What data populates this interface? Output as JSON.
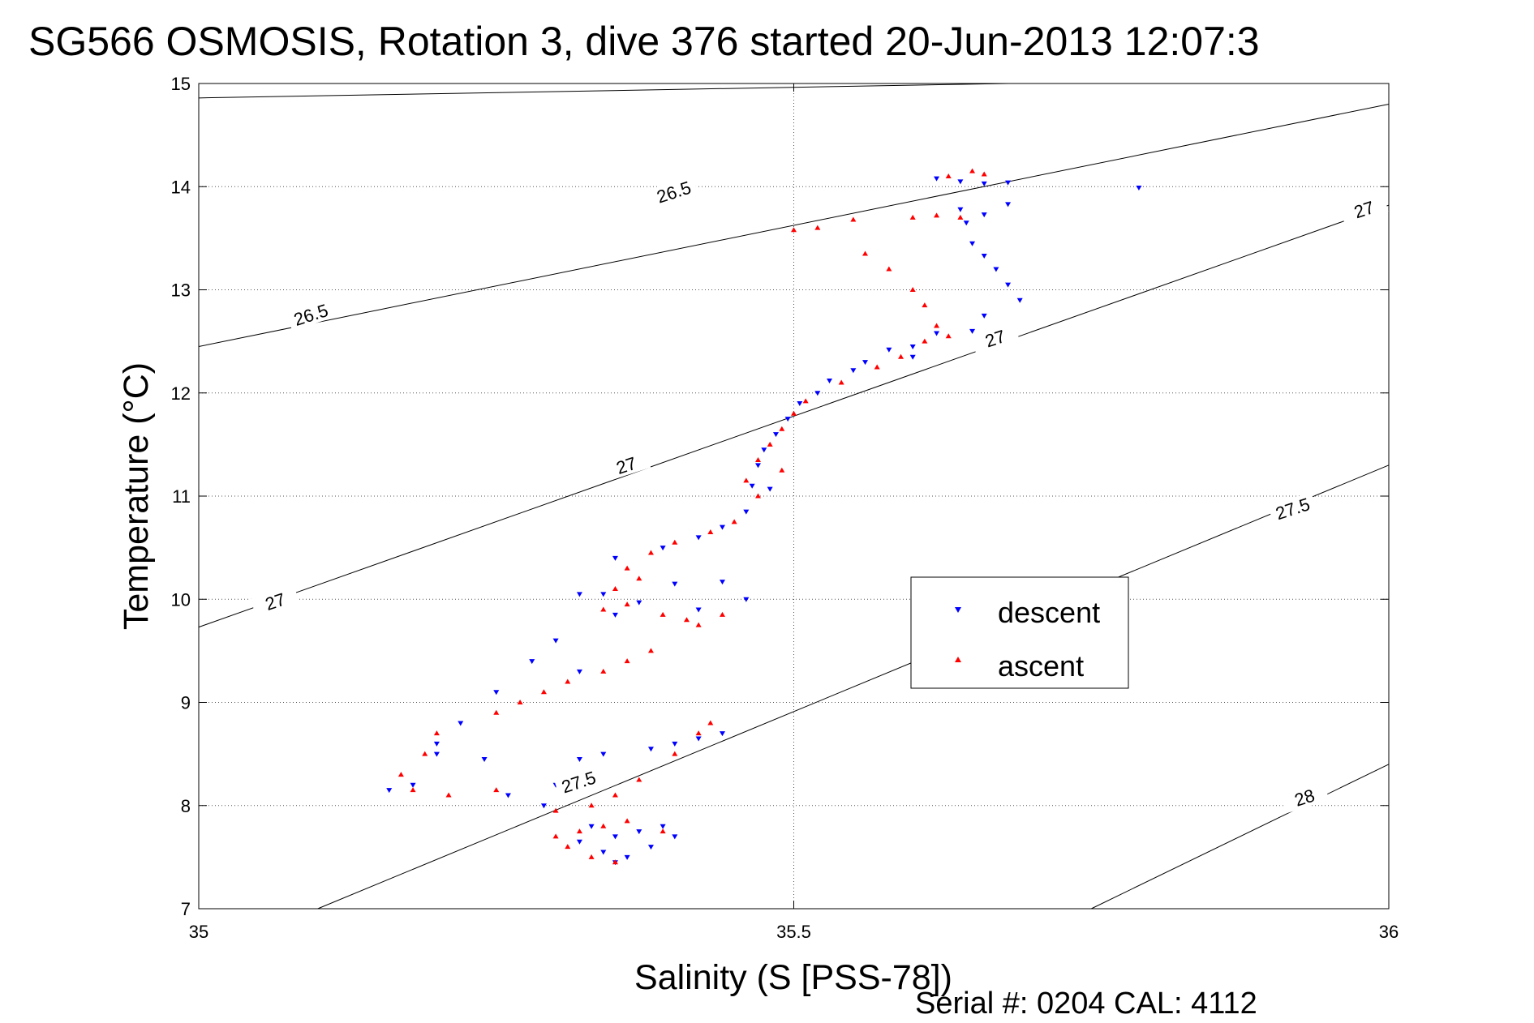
{
  "chart_data": {
    "type": "scatter",
    "title": "SG566 OSMOSIS, Rotation 3, dive 376 started 20-Jun-2013 12:07:3",
    "xlabel": "Salinity (S [PSS-78])",
    "ylabel": "Temperature (°C)",
    "xlim": [
      35,
      36
    ],
    "ylim": [
      7,
      15
    ],
    "x_ticks": [
      "35",
      "35.5",
      "36"
    ],
    "y_ticks": [
      "7",
      "8",
      "9",
      "10",
      "11",
      "12",
      "13",
      "14",
      "15"
    ],
    "grid": "dotted",
    "legend_position": "right",
    "footer": "Serial #: 0204  CAL: 4112",
    "isopycnal_lines": [
      {
        "sigma": "26.5",
        "start": [
          35.0,
          14.86
        ],
        "end": [
          35.68,
          15.0
        ]
      },
      {
        "sigma": "26.5",
        "start": [
          35.0,
          12.45
        ],
        "end": [
          36.0,
          14.8
        ]
      },
      {
        "sigma": "27",
        "start": [
          35.0,
          9.73
        ],
        "end": [
          36.0,
          13.82
        ]
      },
      {
        "sigma": "27.5",
        "start": [
          35.1,
          7.0
        ],
        "end": [
          36.0,
          11.3
        ]
      },
      {
        "sigma": "28",
        "start": [
          35.75,
          7.0
        ],
        "end": [
          36.0,
          8.4
        ]
      }
    ],
    "contour_labels": [
      {
        "text": "26.5",
        "x": 35.4,
        "y": 13.92
      },
      {
        "text": "26.5",
        "x": 35.095,
        "y": 12.73
      },
      {
        "text": "27",
        "x": 35.98,
        "y": 13.75
      },
      {
        "text": "27",
        "x": 35.67,
        "y": 12.5
      },
      {
        "text": "27",
        "x": 35.36,
        "y": 11.27
      },
      {
        "text": "27",
        "x": 35.065,
        "y": 9.95
      },
      {
        "text": "27.5",
        "x": 35.92,
        "y": 10.85
      },
      {
        "text": "27.5",
        "x": 35.32,
        "y": 8.2
      },
      {
        "text": "28",
        "x": 35.93,
        "y": 8.05
      }
    ],
    "series": [
      {
        "name": "descent",
        "color": "#0000ff",
        "marker": "triangle-down",
        "points": [
          [
            35.64,
            14.05
          ],
          [
            35.66,
            14.03
          ],
          [
            35.68,
            14.04
          ],
          [
            35.79,
            13.99
          ],
          [
            35.62,
            14.08
          ],
          [
            35.64,
            13.78
          ],
          [
            35.66,
            13.73
          ],
          [
            35.68,
            13.83
          ],
          [
            35.645,
            13.65
          ],
          [
            35.65,
            13.45
          ],
          [
            35.66,
            13.33
          ],
          [
            35.67,
            13.2
          ],
          [
            35.68,
            13.05
          ],
          [
            35.69,
            12.9
          ],
          [
            35.66,
            12.75
          ],
          [
            35.65,
            12.6
          ],
          [
            35.62,
            12.58
          ],
          [
            35.6,
            12.45
          ],
          [
            35.6,
            12.35
          ],
          [
            35.58,
            12.42
          ],
          [
            35.56,
            12.3
          ],
          [
            35.55,
            12.22
          ],
          [
            35.53,
            12.12
          ],
          [
            35.52,
            12.0
          ],
          [
            35.505,
            11.9
          ],
          [
            35.495,
            11.75
          ],
          [
            35.485,
            11.6
          ],
          [
            35.475,
            11.45
          ],
          [
            35.47,
            11.3
          ],
          [
            35.465,
            11.1
          ],
          [
            35.48,
            11.07
          ],
          [
            35.46,
            10.85
          ],
          [
            35.44,
            10.7
          ],
          [
            35.42,
            10.6
          ],
          [
            35.39,
            10.5
          ],
          [
            35.35,
            10.4
          ],
          [
            35.4,
            10.15
          ],
          [
            35.44,
            10.17
          ],
          [
            35.46,
            10.0
          ],
          [
            35.42,
            9.9
          ],
          [
            35.37,
            9.97
          ],
          [
            35.34,
            10.05
          ],
          [
            35.35,
            9.85
          ],
          [
            35.32,
            10.05
          ],
          [
            35.3,
            9.6
          ],
          [
            35.28,
            9.4
          ],
          [
            35.32,
            9.3
          ],
          [
            35.25,
            9.1
          ],
          [
            35.22,
            8.8
          ],
          [
            35.2,
            8.6
          ],
          [
            35.18,
            8.2
          ],
          [
            35.16,
            8.15
          ],
          [
            35.2,
            8.5
          ],
          [
            35.24,
            8.45
          ],
          [
            35.26,
            8.1
          ],
          [
            35.29,
            8.0
          ],
          [
            35.3,
            8.2
          ],
          [
            35.32,
            8.45
          ],
          [
            35.34,
            8.5
          ],
          [
            35.38,
            8.55
          ],
          [
            35.4,
            8.6
          ],
          [
            35.42,
            8.65
          ],
          [
            35.44,
            8.7
          ],
          [
            35.33,
            7.8
          ],
          [
            35.35,
            7.7
          ],
          [
            35.37,
            7.75
          ],
          [
            35.39,
            7.8
          ],
          [
            35.4,
            7.7
          ],
          [
            35.38,
            7.6
          ],
          [
            35.36,
            7.5
          ],
          [
            35.35,
            7.45
          ],
          [
            35.34,
            7.55
          ],
          [
            35.32,
            7.65
          ]
        ]
      },
      {
        "name": "ascent",
        "color": "#ff0000",
        "marker": "triangle-up",
        "points": [
          [
            35.63,
            14.1
          ],
          [
            35.65,
            14.15
          ],
          [
            35.66,
            14.12
          ],
          [
            35.62,
            13.72
          ],
          [
            35.64,
            13.7
          ],
          [
            35.6,
            13.7
          ],
          [
            35.55,
            13.68
          ],
          [
            35.52,
            13.6
          ],
          [
            35.5,
            13.58
          ],
          [
            35.56,
            13.35
          ],
          [
            35.58,
            13.2
          ],
          [
            35.6,
            13.0
          ],
          [
            35.61,
            12.85
          ],
          [
            35.62,
            12.65
          ],
          [
            35.63,
            12.55
          ],
          [
            35.61,
            12.5
          ],
          [
            35.59,
            12.35
          ],
          [
            35.57,
            12.25
          ],
          [
            35.54,
            12.1
          ],
          [
            35.51,
            11.92
          ],
          [
            35.5,
            11.8
          ],
          [
            35.49,
            11.65
          ],
          [
            35.48,
            11.5
          ],
          [
            35.47,
            11.35
          ],
          [
            35.49,
            11.25
          ],
          [
            35.46,
            11.15
          ],
          [
            35.47,
            11.0
          ],
          [
            35.45,
            10.75
          ],
          [
            35.43,
            10.65
          ],
          [
            35.4,
            10.55
          ],
          [
            35.38,
            10.45
          ],
          [
            35.36,
            10.3
          ],
          [
            35.37,
            10.2
          ],
          [
            35.35,
            10.1
          ],
          [
            35.36,
            9.95
          ],
          [
            35.34,
            9.9
          ],
          [
            35.39,
            9.85
          ],
          [
            35.41,
            9.8
          ],
          [
            35.42,
            9.75
          ],
          [
            35.44,
            9.85
          ],
          [
            35.38,
            9.5
          ],
          [
            35.36,
            9.4
          ],
          [
            35.34,
            9.3
          ],
          [
            35.31,
            9.2
          ],
          [
            35.29,
            9.1
          ],
          [
            35.27,
            9.0
          ],
          [
            35.25,
            8.9
          ],
          [
            35.2,
            8.7
          ],
          [
            35.19,
            8.5
          ],
          [
            35.17,
            8.3
          ],
          [
            35.18,
            8.15
          ],
          [
            35.21,
            8.1
          ],
          [
            35.25,
            8.15
          ],
          [
            35.3,
            7.95
          ],
          [
            35.33,
            8.0
          ],
          [
            35.35,
            8.1
          ],
          [
            35.37,
            8.25
          ],
          [
            35.4,
            8.5
          ],
          [
            35.42,
            8.7
          ],
          [
            35.43,
            8.8
          ],
          [
            35.32,
            7.75
          ],
          [
            35.34,
            7.8
          ],
          [
            35.36,
            7.85
          ],
          [
            35.39,
            7.75
          ],
          [
            35.35,
            7.45
          ],
          [
            35.33,
            7.5
          ],
          [
            35.31,
            7.6
          ],
          [
            35.3,
            7.7
          ]
        ]
      }
    ]
  }
}
